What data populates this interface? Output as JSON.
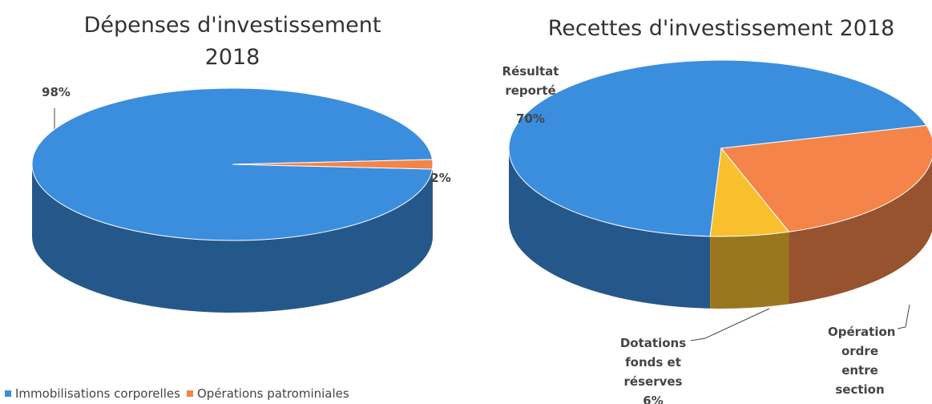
{
  "chart_data": [
    {
      "type": "pie",
      "title": "Dépenses d'investissement 2018",
      "categories": [
        "Immobilisations corporelles",
        "Opérations patrominiales"
      ],
      "values": [
        98,
        2
      ],
      "value_labels": [
        "98%",
        "2%"
      ],
      "colors": [
        "#3b8ede",
        "#f4844a"
      ],
      "legend": "bottom-left"
    },
    {
      "type": "pie",
      "title": "Recettes d'investissement 2018",
      "categories": [
        "Résultat reporté",
        "Opération ordre entre section",
        "Dotations fonds et réserves"
      ],
      "values": [
        70,
        24,
        6
      ],
      "value_labels": [
        "70%",
        null,
        "6%"
      ],
      "colors": [
        "#3b8ede",
        "#f4844a",
        "#f9c02e"
      ]
    }
  ]
}
